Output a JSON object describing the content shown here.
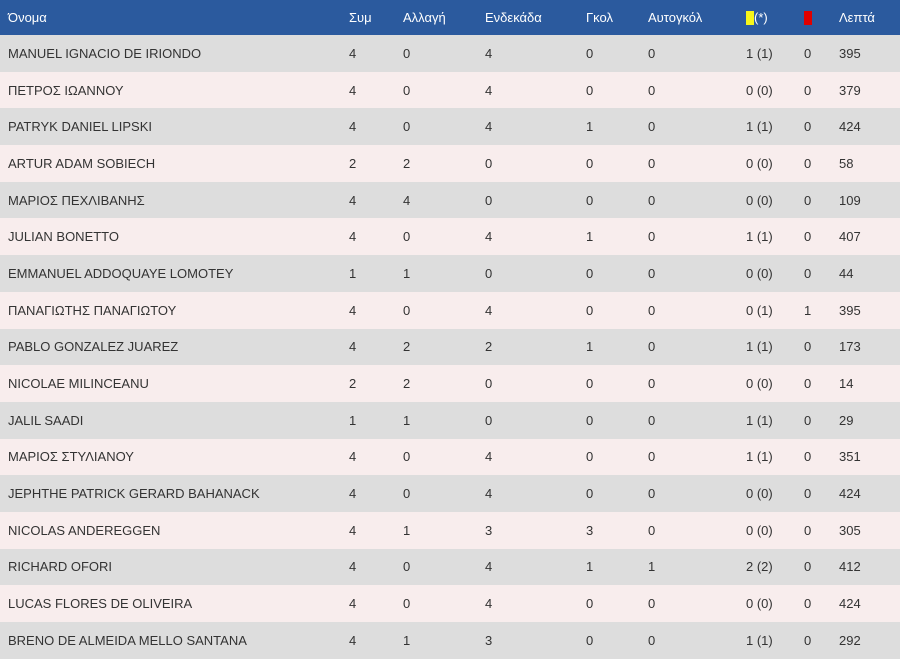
{
  "columns": {
    "name": "Όνομα",
    "starts_total": "Συμ",
    "sub": "Αλλαγή",
    "eleven": "Ενδεκάδα",
    "goals": "Γκολ",
    "own_goals": "Αυτογκόλ",
    "yellow_suffix": "(*)",
    "minutes": "Λεπτά"
  },
  "colors": {
    "header_bg": "#2b5a9e",
    "row_odd": "#dddddd",
    "row_even": "#f8eded",
    "yellow_card": "#f6f61a",
    "red_card": "#e00000"
  },
  "players": [
    {
      "name": "MANUEL IGNACIO DE IRIONDO",
      "apps": "4",
      "sub": "0",
      "eleven": "4",
      "goals": "0",
      "own_goals": "0",
      "yellow": "1 (1)",
      "red": "0",
      "minutes": "395"
    },
    {
      "name": "ΠΕΤΡΟΣ ΙΩΑΝΝΟΥ",
      "apps": "4",
      "sub": "0",
      "eleven": "4",
      "goals": "0",
      "own_goals": "0",
      "yellow": "0 (0)",
      "red": "0",
      "minutes": "379"
    },
    {
      "name": "PATRYK DANIEL LIPSKI",
      "apps": "4",
      "sub": "0",
      "eleven": "4",
      "goals": "1",
      "own_goals": "0",
      "yellow": "1 (1)",
      "red": "0",
      "minutes": "424"
    },
    {
      "name": "ARTUR ADAM SOBIECH",
      "apps": "2",
      "sub": "2",
      "eleven": "0",
      "goals": "0",
      "own_goals": "0",
      "yellow": "0 (0)",
      "red": "0",
      "minutes": "58"
    },
    {
      "name": "ΜΑΡΙΟΣ ΠΕΧΛΙΒΑΝΗΣ",
      "apps": "4",
      "sub": "4",
      "eleven": "0",
      "goals": "0",
      "own_goals": "0",
      "yellow": "0 (0)",
      "red": "0",
      "minutes": "109"
    },
    {
      "name": "JULIAN BONETTO",
      "apps": "4",
      "sub": "0",
      "eleven": "4",
      "goals": "1",
      "own_goals": "0",
      "yellow": "1 (1)",
      "red": "0",
      "minutes": "407"
    },
    {
      "name": "EMMANUEL ADDOQUAYE LOMOTEY",
      "apps": "1",
      "sub": "1",
      "eleven": "0",
      "goals": "0",
      "own_goals": "0",
      "yellow": "0 (0)",
      "red": "0",
      "minutes": "44"
    },
    {
      "name": "ΠΑΝΑΓΙΩΤΗΣ ΠΑΝΑΓΙΩΤΟΥ",
      "apps": "4",
      "sub": "0",
      "eleven": "4",
      "goals": "0",
      "own_goals": "0",
      "yellow": "0 (1)",
      "red": "1",
      "minutes": "395"
    },
    {
      "name": "PABLO GONZALEZ JUAREZ",
      "apps": "4",
      "sub": "2",
      "eleven": "2",
      "goals": "1",
      "own_goals": "0",
      "yellow": "1 (1)",
      "red": "0",
      "minutes": "173"
    },
    {
      "name": "NICOLAE MILINCEANU",
      "apps": "2",
      "sub": "2",
      "eleven": "0",
      "goals": "0",
      "own_goals": "0",
      "yellow": "0 (0)",
      "red": "0",
      "minutes": "14"
    },
    {
      "name": "JALIL SAADI",
      "apps": "1",
      "sub": "1",
      "eleven": "0",
      "goals": "0",
      "own_goals": "0",
      "yellow": "1 (1)",
      "red": "0",
      "minutes": "29"
    },
    {
      "name": "ΜΑΡΙΟΣ ΣΤΥΛΙΑΝΟΥ",
      "apps": "4",
      "sub": "0",
      "eleven": "4",
      "goals": "0",
      "own_goals": "0",
      "yellow": "1 (1)",
      "red": "0",
      "minutes": "351"
    },
    {
      "name": "JEPHTHE PATRICK GERARD BAHANACK",
      "apps": "4",
      "sub": "0",
      "eleven": "4",
      "goals": "0",
      "own_goals": "0",
      "yellow": "0 (0)",
      "red": "0",
      "minutes": "424"
    },
    {
      "name": "NICOLAS ANDEREGGEN",
      "apps": "4",
      "sub": "1",
      "eleven": "3",
      "goals": "3",
      "own_goals": "0",
      "yellow": "0 (0)",
      "red": "0",
      "minutes": "305"
    },
    {
      "name": "RICHARD OFORI",
      "apps": "4",
      "sub": "0",
      "eleven": "4",
      "goals": "1",
      "own_goals": "1",
      "yellow": "2 (2)",
      "red": "0",
      "minutes": "412"
    },
    {
      "name": "LUCAS FLORES DE OLIVEIRA",
      "apps": "4",
      "sub": "0",
      "eleven": "4",
      "goals": "0",
      "own_goals": "0",
      "yellow": "0 (0)",
      "red": "0",
      "minutes": "424"
    },
    {
      "name": "BRENO DE ALMEIDA MELLO SANTANA",
      "apps": "4",
      "sub": "1",
      "eleven": "3",
      "goals": "0",
      "own_goals": "0",
      "yellow": "1 (1)",
      "red": "0",
      "minutes": "292"
    }
  ]
}
